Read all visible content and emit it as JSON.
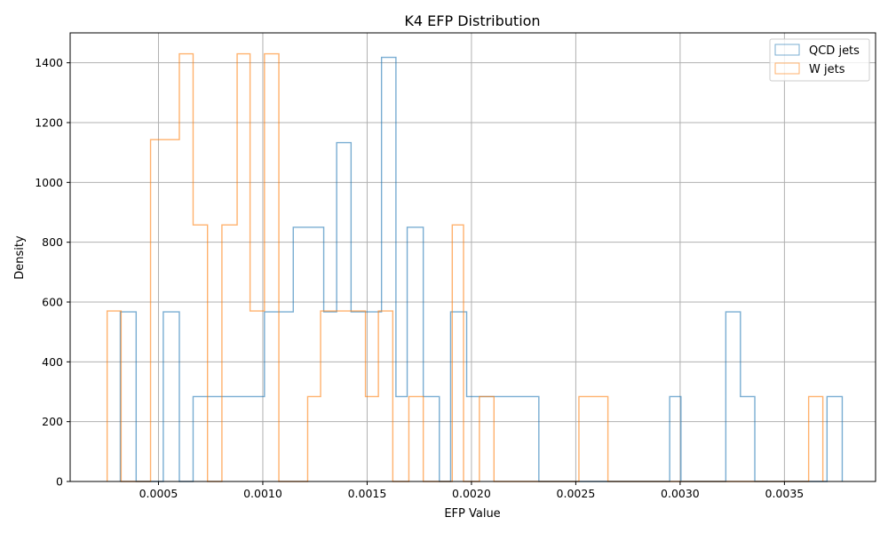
{
  "chart_data": {
    "type": "histogram-step",
    "title": "K4 EFP Distribution",
    "xlabel": "EFP Value",
    "ylabel": "Density",
    "xlim": [
      7.67e-05,
      0.0039367
    ],
    "ylim": [
      0,
      1500
    ],
    "xticks": [
      0.0005,
      0.001,
      0.0015,
      0.002,
      0.0025,
      0.003,
      0.0035
    ],
    "xtick_labels": [
      "0.0005",
      "0.0010",
      "0.0015",
      "0.0020",
      "0.0025",
      "0.0030",
      "0.0035"
    ],
    "yticks": [
      0,
      200,
      400,
      600,
      800,
      1000,
      1200,
      1400
    ],
    "ytick_labels": [
      "0",
      "200",
      "400",
      "600",
      "800",
      "1000",
      "1200",
      "1400"
    ],
    "grid": true,
    "legend_position": "top-right",
    "series": [
      {
        "name": "QCD jets",
        "color": "#1f77b4",
        "edges": [
          0.000317,
          0.000393,
          0.000523,
          0.0006,
          0.000666,
          0.001008,
          0.001146,
          0.001292,
          0.001354,
          0.001423,
          0.001569,
          0.001638,
          0.001692,
          0.001769,
          0.001846,
          0.0019,
          0.001977,
          0.002323,
          0.00295,
          0.003004,
          0.003219,
          0.003289,
          0.003358,
          0.003704,
          0.003777
        ],
        "heights": [
          567,
          0,
          567,
          0,
          284,
          567,
          850,
          567,
          1133,
          567,
          1418,
          284,
          850,
          284,
          0,
          567,
          284,
          0,
          284,
          0,
          567,
          284,
          0,
          284
        ]
      },
      {
        "name": "W jets",
        "color": "#ff7f0e",
        "edges": [
          0.000254,
          0.000321,
          0.000462,
          0.0006,
          0.000666,
          0.000735,
          0.000804,
          0.000877,
          0.000939,
          0.001008,
          0.001077,
          0.001215,
          0.001277,
          0.001346,
          0.001492,
          0.001554,
          0.001623,
          0.0017,
          0.001769,
          0.001908,
          0.001962,
          0.002038,
          0.002108,
          0.002515,
          0.002654,
          0.003616,
          0.003684
        ],
        "heights": [
          570,
          0,
          1143,
          1430,
          858,
          0,
          858,
          1430,
          570,
          1430,
          0,
          284,
          570,
          570,
          284,
          570,
          0,
          284,
          0,
          858,
          0,
          284,
          0,
          284,
          0,
          284
        ]
      }
    ]
  }
}
